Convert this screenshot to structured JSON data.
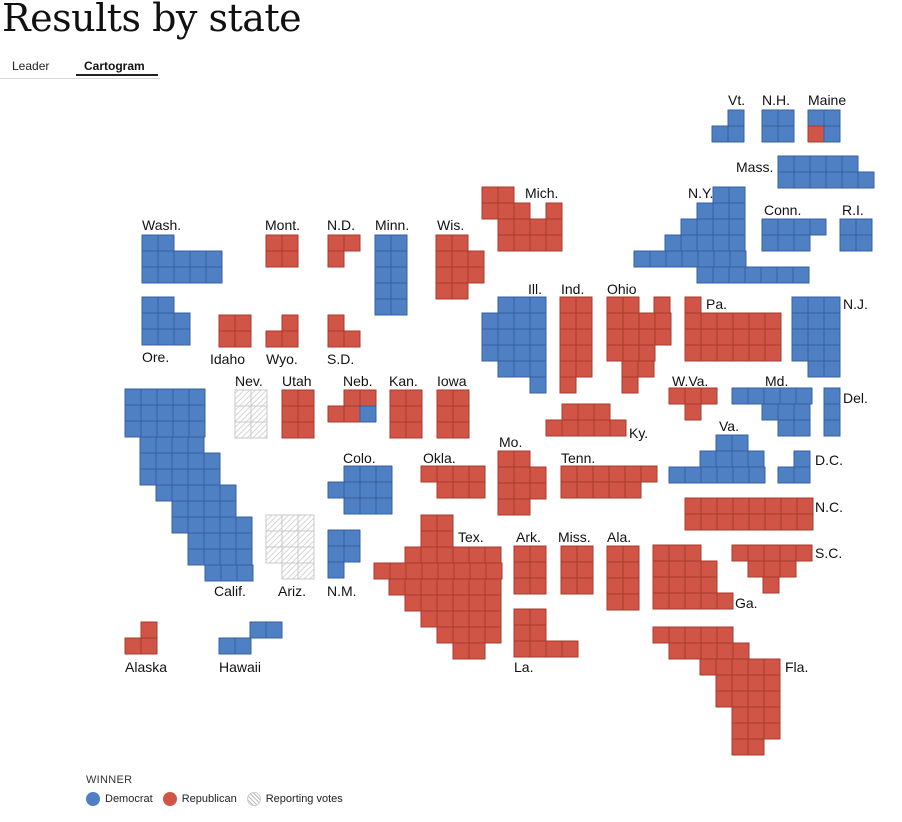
{
  "title": "Results by state",
  "tabs": [
    {
      "label": "Leader"
    },
    {
      "label": "Cartogram"
    }
  ],
  "colors": {
    "Democrat": "#5080c4",
    "Republican": "#d05546",
    "Reporting votes": "#cccccc"
  },
  "legend": {
    "title": "WINNER",
    "items": [
      {
        "label": "Democrat",
        "winner": "Democrat"
      },
      {
        "label": "Republican",
        "winner": "Republican"
      },
      {
        "label": "Reporting votes",
        "winner": "Reporting votes"
      }
    ]
  },
  "states": [
    {
      "label": "Vt.",
      "winner": "Democrat"
    },
    {
      "label": "N.H.",
      "winner": "Democrat"
    },
    {
      "label": "Maine",
      "winner": "Democrat"
    },
    {
      "label": "Mass.",
      "winner": "Democrat"
    },
    {
      "label": "N.Y.",
      "winner": "Democrat"
    },
    {
      "label": "Conn.",
      "winner": "Democrat"
    },
    {
      "label": "R.I.",
      "winner": "Democrat"
    },
    {
      "label": "Mich.",
      "winner": "Republican"
    },
    {
      "label": "Wash.",
      "winner": "Democrat"
    },
    {
      "label": "Mont.",
      "winner": "Republican"
    },
    {
      "label": "N.D.",
      "winner": "Republican"
    },
    {
      "label": "Minn.",
      "winner": "Democrat"
    },
    {
      "label": "Wis.",
      "winner": "Republican"
    },
    {
      "label": "Ill.",
      "winner": "Democrat"
    },
    {
      "label": "Ind.",
      "winner": "Republican"
    },
    {
      "label": "Ohio",
      "winner": "Republican"
    },
    {
      "label": "Pa.",
      "winner": "Republican"
    },
    {
      "label": "N.J.",
      "winner": "Democrat"
    },
    {
      "label": "Ore.",
      "winner": "Democrat"
    },
    {
      "label": "Idaho",
      "winner": "Republican"
    },
    {
      "label": "Wyo.",
      "winner": "Republican"
    },
    {
      "label": "S.D.",
      "winner": "Republican"
    },
    {
      "label": "Nev.",
      "winner": "Reporting votes"
    },
    {
      "label": "Utah",
      "winner": "Republican"
    },
    {
      "label": "Neb.",
      "winner": "Republican"
    },
    {
      "label": "Kan.",
      "winner": "Republican"
    },
    {
      "label": "Iowa",
      "winner": "Republican"
    },
    {
      "label": "W.Va.",
      "winner": "Republican"
    },
    {
      "label": "Md.",
      "winner": "Democrat"
    },
    {
      "label": "Del.",
      "winner": "Democrat"
    },
    {
      "label": "Ky.",
      "winner": "Republican"
    },
    {
      "label": "Va.",
      "winner": "Democrat"
    },
    {
      "label": "Colo.",
      "winner": "Democrat"
    },
    {
      "label": "Okla.",
      "winner": "Republican"
    },
    {
      "label": "Mo.",
      "winner": "Republican"
    },
    {
      "label": "Tenn.",
      "winner": "Republican"
    },
    {
      "label": "D.C.",
      "winner": "Democrat"
    },
    {
      "label": "N.C.",
      "winner": "Republican"
    },
    {
      "label": "Calif.",
      "winner": "Democrat"
    },
    {
      "label": "Ariz.",
      "winner": "Reporting votes"
    },
    {
      "label": "N.M.",
      "winner": "Democrat"
    },
    {
      "label": "Tex.",
      "winner": "Republican"
    },
    {
      "label": "Ark.",
      "winner": "Republican"
    },
    {
      "label": "Miss.",
      "winner": "Republican"
    },
    {
      "label": "Ala.",
      "winner": "Republican"
    },
    {
      "label": "S.C.",
      "winner": "Republican"
    },
    {
      "label": "Ga.",
      "winner": "Republican"
    },
    {
      "label": "Alaska",
      "winner": "Republican"
    },
    {
      "label": "Hawaii",
      "winner": "Democrat"
    },
    {
      "label": "La.",
      "winner": "Republican"
    },
    {
      "label": "Fla.",
      "winner": "Republican"
    }
  ]
}
